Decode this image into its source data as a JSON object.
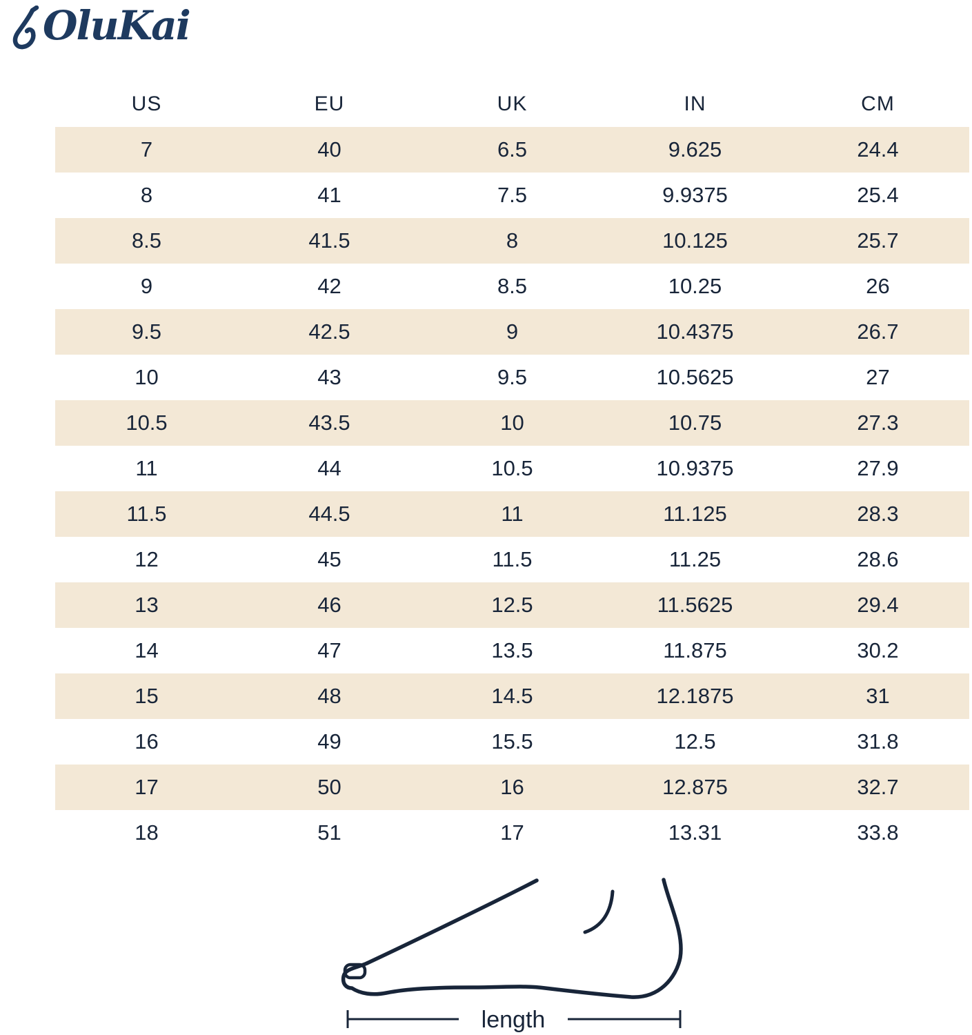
{
  "brand": {
    "name": "OluKai"
  },
  "colors": {
    "text_navy": "#182539",
    "logo_navy": "#1e3a5f",
    "row_alt_beige": "#f3e8d6",
    "background": "#ffffff"
  },
  "size_table": {
    "headers": [
      "US",
      "EU",
      "UK",
      "IN",
      "CM"
    ],
    "rows": [
      [
        "7",
        "40",
        "6.5",
        "9.625",
        "24.4"
      ],
      [
        "8",
        "41",
        "7.5",
        "9.9375",
        "25.4"
      ],
      [
        "8.5",
        "41.5",
        "8",
        "10.125",
        "25.7"
      ],
      [
        "9",
        "42",
        "8.5",
        "10.25",
        "26"
      ],
      [
        "9.5",
        "42.5",
        "9",
        "10.4375",
        "26.7"
      ],
      [
        "10",
        "43",
        "9.5",
        "10.5625",
        "27"
      ],
      [
        "10.5",
        "43.5",
        "10",
        "10.75",
        "27.3"
      ],
      [
        "11",
        "44",
        "10.5",
        "10.9375",
        "27.9"
      ],
      [
        "11.5",
        "44.5",
        "11",
        "11.125",
        "28.3"
      ],
      [
        "12",
        "45",
        "11.5",
        "11.25",
        "28.6"
      ],
      [
        "13",
        "46",
        "12.5",
        "11.5625",
        "29.4"
      ],
      [
        "14",
        "47",
        "13.5",
        "11.875",
        "30.2"
      ],
      [
        "15",
        "48",
        "14.5",
        "12.1875",
        "31"
      ],
      [
        "16",
        "49",
        "15.5",
        "12.5",
        "31.8"
      ],
      [
        "17",
        "50",
        "16",
        "12.875",
        "32.7"
      ],
      [
        "18",
        "51",
        "17",
        "13.31",
        "33.8"
      ]
    ]
  },
  "foot_diagram": {
    "label": "length"
  },
  "chart_data": {
    "type": "table",
    "title": "OluKai shoe size conversion chart",
    "columns": [
      "US",
      "EU",
      "UK",
      "IN",
      "CM"
    ],
    "rows": [
      [
        7,
        40,
        6.5,
        9.625,
        24.4
      ],
      [
        8,
        41,
        7.5,
        9.9375,
        25.4
      ],
      [
        8.5,
        41.5,
        8,
        10.125,
        25.7
      ],
      [
        9,
        42,
        8.5,
        10.25,
        26
      ],
      [
        9.5,
        42.5,
        9,
        10.4375,
        26.7
      ],
      [
        10,
        43,
        9.5,
        10.5625,
        27
      ],
      [
        10.5,
        43.5,
        10,
        10.75,
        27.3
      ],
      [
        11,
        44,
        10.5,
        10.9375,
        27.9
      ],
      [
        11.5,
        44.5,
        11,
        11.125,
        28.3
      ],
      [
        12,
        45,
        11.5,
        11.25,
        28.6
      ],
      [
        13,
        46,
        12.5,
        11.5625,
        29.4
      ],
      [
        14,
        47,
        13.5,
        11.875,
        30.2
      ],
      [
        15,
        48,
        14.5,
        12.1875,
        31
      ],
      [
        16,
        49,
        15.5,
        12.5,
        31.8
      ],
      [
        17,
        50,
        16,
        12.875,
        32.7
      ],
      [
        18,
        51,
        17,
        13.31,
        33.8
      ]
    ],
    "layout_hints": {
      "striped_rows": "odd rows beige",
      "alignment": "center"
    }
  }
}
